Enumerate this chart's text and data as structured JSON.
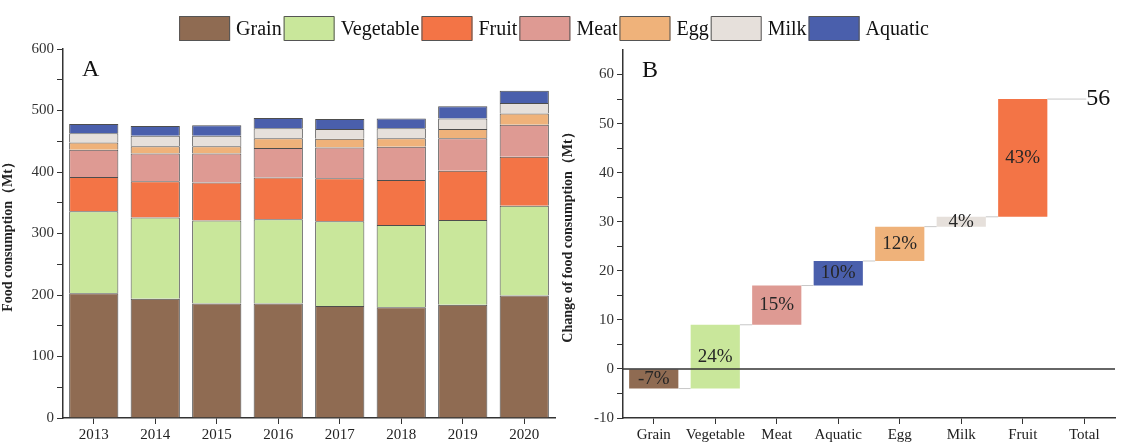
{
  "chart_data": [
    {
      "type": "bar",
      "title": "A",
      "ylabel": "Food consumption（Mt）",
      "categories": [
        "2013",
        "2014",
        "2015",
        "2016",
        "2017",
        "2018",
        "2019",
        "2020"
      ],
      "stacked": true,
      "series": [
        {
          "name": "Grain",
          "color": "#8f6b52",
          "values": [
            203,
            194,
            186,
            186,
            182,
            180,
            184,
            199
          ]
        },
        {
          "name": "Vegetable",
          "color": "#c9e79b",
          "values": [
            133,
            132,
            135,
            137,
            138,
            134,
            138,
            146
          ]
        },
        {
          "name": "Fruit",
          "color": "#f37446",
          "values": [
            56,
            59,
            62,
            68,
            70,
            73,
            80,
            80
          ]
        },
        {
          "name": "Meat",
          "color": "#de9a93",
          "values": [
            44,
            45,
            47,
            48,
            50,
            54,
            53,
            52
          ]
        },
        {
          "name": "Egg",
          "color": "#efb27a",
          "values": [
            12,
            12,
            12,
            16,
            14,
            14,
            15,
            18
          ]
        },
        {
          "name": "Milk",
          "color": "#e6e0db",
          "values": [
            15,
            17,
            17,
            16,
            16,
            16,
            17,
            17
          ]
        },
        {
          "name": "Aquatic",
          "color": "#4a5fac",
          "values": [
            15,
            16,
            17,
            17,
            16,
            16,
            20,
            20
          ]
        }
      ],
      "ylim": [
        0,
        600
      ],
      "yticks": [
        0,
        {
          "value": 50,
          "label": null
        },
        100,
        {
          "value": 150,
          "label": null
        },
        200,
        {
          "value": 250,
          "label": null
        },
        300,
        {
          "value": 350,
          "label": null
        },
        400,
        {
          "value": 450,
          "label": null
        },
        500,
        {
          "value": 550,
          "label": null
        },
        600
      ],
      "legend": "top",
      "grid": false
    },
    {
      "type": "bar",
      "title": "B",
      "ylabel": "Change of food consumption（Mt）",
      "categories": [
        "Grain",
        "Vegetable",
        "Meat",
        "Aquatic",
        "Egg",
        "Milk",
        "Fruit",
        "Total"
      ],
      "values": [
        -4,
        13,
        8,
        5,
        7,
        2,
        24,
        null
      ],
      "base": [
        0,
        -4,
        9,
        17,
        22,
        29,
        31,
        null
      ],
      "colors": [
        "#8f6b52",
        "#c9e79b",
        "#de9a93",
        "#4a5fac",
        "#efb27a",
        "#e6e0db",
        "#f37446",
        null
      ],
      "ylim": [
        -10,
        65
      ],
      "yticks": [
        -10,
        {
          "value": -5,
          "label": null
        },
        0,
        {
          "value": 5,
          "label": null
        },
        10,
        {
          "value": 15,
          "label": null
        },
        20,
        {
          "value": 25,
          "label": null
        },
        30,
        {
          "value": 35,
          "label": null
        },
        40,
        {
          "value": 45,
          "label": null
        },
        50,
        {
          "value": 55,
          "label": null
        },
        60
      ],
      "ref_lines": [
        {
          "axis": "y",
          "value": 0,
          "color": "#333333"
        }
      ],
      "annotations": [
        {
          "text": "-7%",
          "x": "Grain",
          "y": 0
        },
        {
          "text": "24%",
          "x": "Vegetable",
          "y": -4
        },
        {
          "text": "15%",
          "x": "Meat",
          "y": 9
        },
        {
          "text": "10%",
          "x": "Aquatic",
          "y": 17
        },
        {
          "text": "12%",
          "x": "Egg",
          "y": 22
        },
        {
          "text": "4%",
          "x": "Milk",
          "y": 29
        },
        {
          "text": "43%",
          "x": "Fruit",
          "y": 31
        },
        {
          "text": "56",
          "x": "Fruit",
          "y": 55
        }
      ],
      "grid": false
    }
  ]
}
